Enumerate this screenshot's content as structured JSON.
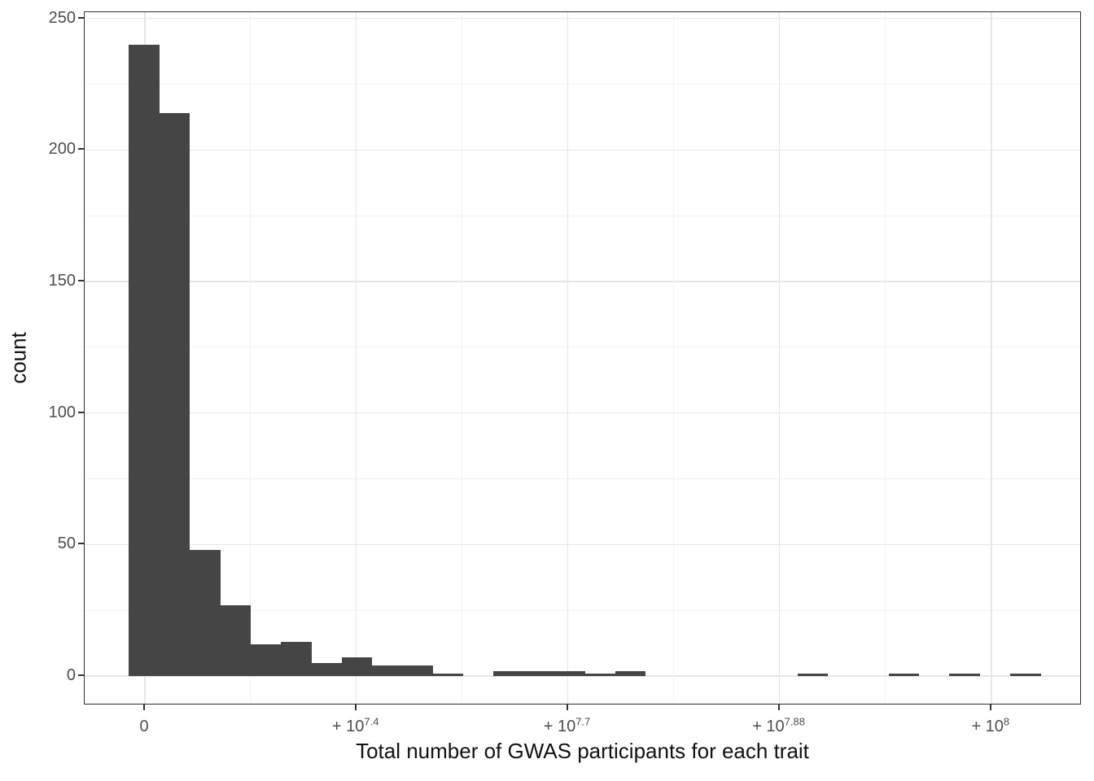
{
  "figure": {
    "x_axis_title": "Total number of GWAS participants for each trait",
    "y_axis_title": "count"
  },
  "chart_data": {
    "type": "bar",
    "subtype": "histogram",
    "title": "",
    "xlabel": "Total number of GWAS participants for each trait",
    "ylabel": "count",
    "x_scale": "pseudo-log (signed log10 offsets from 0)",
    "x_tick_labels": [
      "0",
      "+10^7.4",
      "+10^7.7",
      "+10^7.88",
      "+10^8"
    ],
    "x_ticks_render": [
      {
        "text": "0",
        "sup": ""
      },
      {
        "text": "+ 10",
        "sup": "7.4"
      },
      {
        "text": "+ 10",
        "sup": "7.7"
      },
      {
        "text": "+ 10",
        "sup": "7.88"
      },
      {
        "text": "+ 10",
        "sup": "8"
      }
    ],
    "y_tick_labels": [
      "0",
      "50",
      "100",
      "150",
      "200",
      "250"
    ],
    "y_ticks": [
      0,
      50,
      100,
      150,
      200,
      250
    ],
    "ylim": [
      -12,
      252
    ],
    "n_bins": 30,
    "bin_counts": [
      240,
      214,
      48,
      27,
      12,
      13,
      5,
      7,
      4,
      4,
      1,
      0,
      2,
      2,
      2,
      1,
      2,
      0,
      0,
      0,
      0,
      0,
      1,
      0,
      0,
      1,
      0,
      1,
      0,
      1
    ],
    "grid": "major and minor, light gray on white",
    "legend": "none",
    "colors": {
      "bar_fill": "#454545",
      "grid_major": "#e6e6e6",
      "grid_minor": "#f2f2f2",
      "panel_border": "#2e2e2e",
      "tick_mark": "#333333",
      "tick_label": "#4d4d4d",
      "title_text": "#111111"
    }
  }
}
